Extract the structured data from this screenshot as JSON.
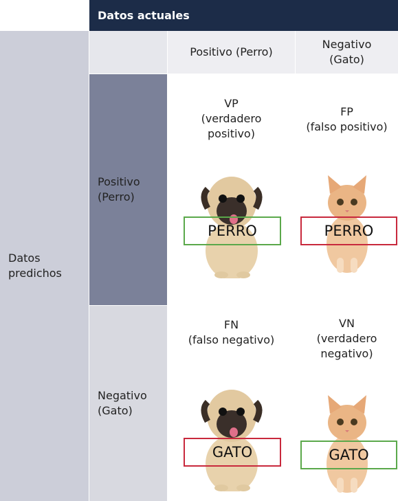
{
  "header": {
    "title": "Datos actuales"
  },
  "columns": [
    [
      "Positivo (Perro)"
    ],
    [
      "Negativo",
      "(Gato)"
    ]
  ],
  "row_group": [
    "Datos",
    "predichos"
  ],
  "rows": [
    {
      "label": [
        "Positivo",
        "(Perro)"
      ],
      "cells": [
        {
          "label": [
            "VP",
            "(verdadero",
            "positivo)"
          ],
          "tag": "PERRO"
        },
        {
          "label": [
            "FP",
            "(falso positivo)"
          ],
          "tag": "PERRO"
        }
      ]
    },
    {
      "label": [
        "Negativo",
        "(Gato)"
      ],
      "cells": [
        {
          "label": [
            "FN",
            "(falso negativo)"
          ],
          "tag": "GATO"
        },
        {
          "label": [
            "VN",
            "(verdadero",
            "negativo)"
          ],
          "tag": "GATO"
        }
      ]
    }
  ]
}
